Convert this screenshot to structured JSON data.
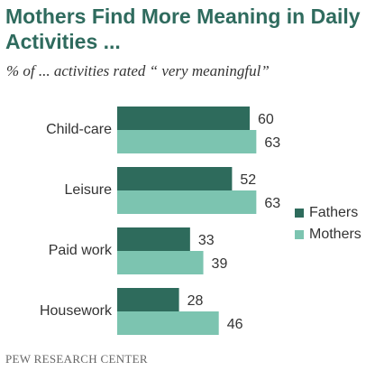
{
  "chart_data": {
    "type": "bar",
    "orientation": "horizontal",
    "title": "Mothers Find More Meaning in Daily Activities ...",
    "subtitle": "% of ... activities rated “ very meaningful”",
    "categories": [
      "Child-care",
      "Leisure",
      "Paid work",
      "Housework"
    ],
    "series": [
      {
        "name": "Fathers",
        "values": [
          60,
          52,
          33,
          28
        ],
        "color": "#2e6b5c"
      },
      {
        "name": "Mothers",
        "values": [
          63,
          63,
          39,
          46
        ],
        "color": "#7cc4b0"
      }
    ],
    "xlim": [
      0,
      100
    ],
    "grid": false,
    "legend": "right",
    "source": "PEW RESEARCH CENTER"
  }
}
